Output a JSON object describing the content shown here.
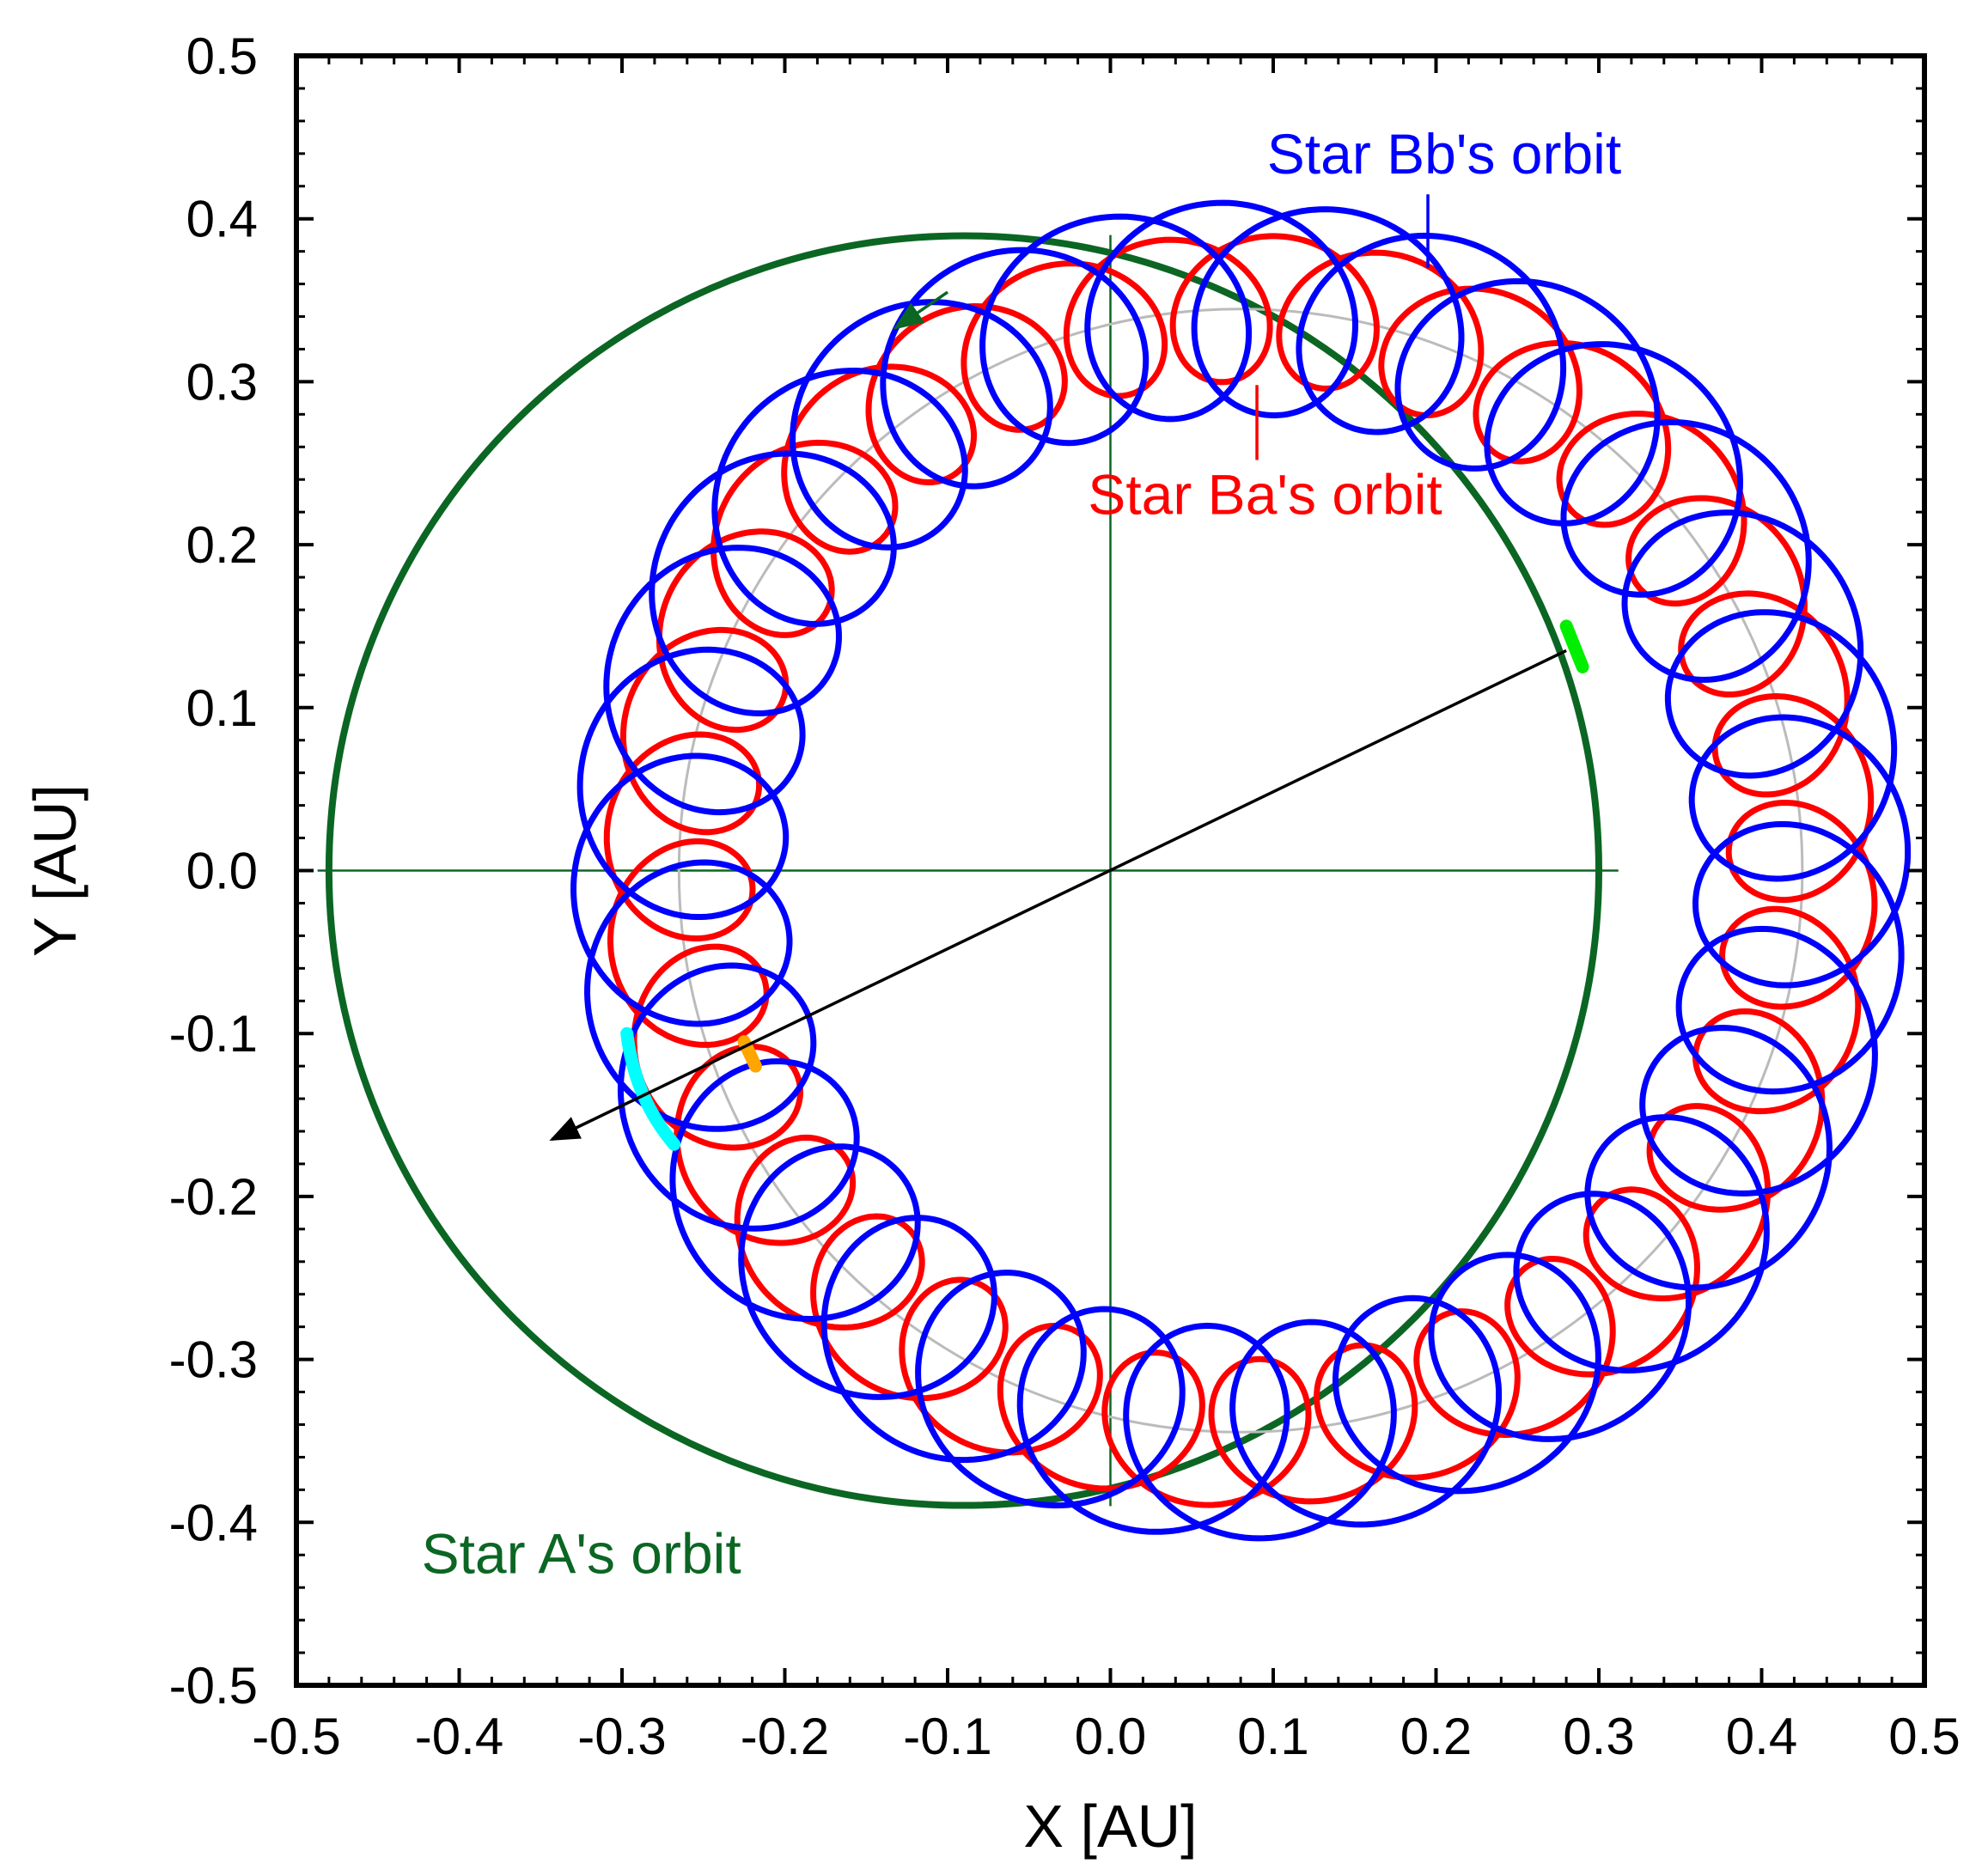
{
  "chart_data": {
    "type": "line",
    "title": "",
    "xlabel": "X [AU]",
    "ylabel": "Y [AU]",
    "xlim": [
      -0.5,
      0.5
    ],
    "ylim": [
      -0.5,
      0.5
    ],
    "x_ticks": [
      "-0.5",
      "-0.4",
      "-0.3",
      "-0.2",
      "-0.1",
      "0.0",
      "0.1",
      "0.2",
      "0.3",
      "0.4",
      "0.5"
    ],
    "y_ticks": [
      "-0.5",
      "-0.4",
      "-0.3",
      "-0.2",
      "-0.1",
      "0.0",
      "0.1",
      "0.2",
      "0.3",
      "0.4",
      "0.5"
    ],
    "grid": false,
    "colors": {
      "star_a": "#0b6623",
      "star_ba": "#ff0000",
      "star_bb": "#0000ff",
      "binary_center": "#bbbbbb",
      "cyan_highlight": "#00ffff",
      "green_highlight": "#00ee00",
      "orange_highlight": "#ffa500",
      "line_of_sight": "#000000"
    },
    "series": [
      {
        "name": "Star A's orbit",
        "kind": "circle",
        "center": [
          -0.09,
          0.0
        ],
        "radius": 0.39,
        "color": "#0b6623"
      },
      {
        "name": "Binary barycentre orbit",
        "kind": "circle",
        "center": [
          0.08,
          0.0
        ],
        "radius": 0.345,
        "color": "#bbbbbb"
      },
      {
        "name": "Star Ba's orbit",
        "kind": "epicycle",
        "center": [
          0.08,
          0.0
        ],
        "radius": 0.345,
        "loop_radius": 0.045,
        "loops": 33,
        "phase_deg": 115,
        "start_deg": 115,
        "end_deg": 478,
        "color": "#ff0000"
      },
      {
        "name": "Star Bb's orbit",
        "kind": "epicycle",
        "center": [
          0.08,
          0.0
        ],
        "radius": 0.345,
        "loop_radius": 0.065,
        "loops": 33,
        "phase_deg": 295,
        "start_deg": 118,
        "end_deg": 480,
        "color": "#0000ff"
      }
    ],
    "highlights": [
      {
        "name": "cyan arc on Bb",
        "from": [
          -0.297,
          -0.1
        ],
        "mid": [
          -0.292,
          -0.14
        ],
        "to": [
          -0.268,
          -0.168
        ],
        "color": "#00ffff"
      },
      {
        "name": "green mark on A",
        "from": [
          0.28,
          0.15
        ],
        "to": [
          0.29,
          0.125
        ],
        "color": "#00ee00"
      },
      {
        "name": "orange mark on Ba",
        "from": [
          -0.225,
          -0.105
        ],
        "to": [
          -0.218,
          -0.12
        ],
        "color": "#ffa500"
      }
    ],
    "line_of_sight": {
      "from": [
        0.28,
        0.135
      ],
      "to": [
        -0.343,
        -0.165
      ]
    },
    "direction_arrow": {
      "from": [
        -0.1,
        0.355
      ],
      "to": [
        -0.132,
        0.333
      ]
    },
    "crosshair": {
      "x": 0.0,
      "y": 0.0,
      "xmin": -0.487,
      "xmax": 0.312,
      "ymin": -0.39,
      "ymax": 0.39
    },
    "annotations": [
      {
        "text": "Star Bb's orbit",
        "x": 0.205,
        "y": 0.437,
        "color": "#0000ff",
        "leader": [
          [
            0.195,
            0.415
          ],
          [
            0.195,
            0.37
          ]
        ]
      },
      {
        "text": "Star Ba's orbit",
        "x": 0.095,
        "y": 0.228,
        "color": "#ff0000",
        "leader": [
          [
            0.09,
            0.298
          ],
          [
            0.09,
            0.252
          ]
        ]
      },
      {
        "text": "Star A's orbit",
        "x": -0.325,
        "y": -0.422,
        "color": "#0b6623",
        "leader": null
      }
    ]
  }
}
